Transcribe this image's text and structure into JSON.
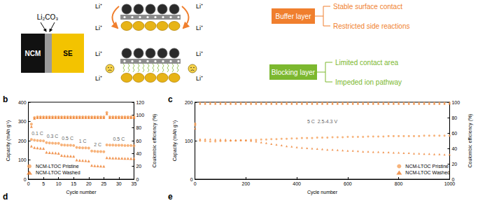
{
  "schematic": {
    "stack": {
      "coating": "Li₂CO₃",
      "cathode": "NCM",
      "electrolyte": "SE"
    },
    "buffer": {
      "ion_labels": [
        "Li⁺",
        "Li⁺",
        "Li⁺",
        "Li⁺"
      ],
      "label": "Buffer layer",
      "color": "#f07f2e",
      "effects": [
        "Stable surface contact",
        "Restricted side reactions"
      ]
    },
    "blocking": {
      "ion_labels": [
        "Li⁺",
        "Li⁺",
        "Li⁺",
        "Li⁺"
      ],
      "label": "Blocking layer",
      "color": "#7cb82f",
      "effects": [
        "Limited contact area",
        "Impeded ion pathway"
      ]
    }
  },
  "cut_panel_labels": [
    "d",
    "e"
  ],
  "chart_data": [
    {
      "type": "scatter",
      "panel_label": "b",
      "x": [
        1,
        2,
        3,
        4,
        5,
        6,
        7,
        8,
        9,
        10,
        11,
        12,
        13,
        14,
        15,
        16,
        17,
        18,
        19,
        20,
        21,
        22,
        23,
        24,
        25,
        26,
        27,
        28,
        29,
        30,
        31,
        32,
        33,
        34,
        35
      ],
      "xlim": [
        0,
        35
      ],
      "xticks": [
        0,
        5,
        10,
        15,
        20,
        25,
        30,
        35
      ],
      "ylim": [
        0,
        400
      ],
      "yticks": [
        0,
        100,
        200,
        300,
        400
      ],
      "y2lim": [
        0,
        120
      ],
      "y2ticks": [
        0,
        20,
        40,
        60,
        80,
        100,
        120
      ],
      "xlabel": "Cycle number",
      "ylabel": "Capacity (mAh g⁻¹)",
      "y2label": "Coulombic efficiency (%)",
      "grid": false,
      "legend": "lower-left",
      "annotations": [
        {
          "text": "0.1 C",
          "x": 3,
          "y": 240
        },
        {
          "text": "0.3 C",
          "x": 8,
          "y": 222
        },
        {
          "text": "0.5 C",
          "x": 13,
          "y": 212
        },
        {
          "text": "1 C",
          "x": 18,
          "y": 198
        },
        {
          "text": "2 C",
          "x": 23,
          "y": 180
        },
        {
          "text": "0.5 C",
          "x": 30,
          "y": 208
        }
      ],
      "series": [
        {
          "name": "NCM-LTOC Pristine",
          "color": "#f5a05a",
          "marker": "circle",
          "values": [
            206,
            203,
            201,
            200,
            199,
            190,
            188,
            187,
            186,
            186,
            178,
            177,
            176,
            176,
            175,
            165,
            164,
            163,
            163,
            162,
            146,
            145,
            144,
            144,
            143,
            178,
            177,
            177,
            176,
            176,
            176,
            175,
            175,
            175,
            174
          ]
        },
        {
          "name": "NCM-LTOC Washed",
          "color": "#ee7d2b",
          "marker": "triangle",
          "values": [
            172,
            165,
            163,
            161,
            160,
            140,
            138,
            137,
            136,
            135,
            124,
            122,
            121,
            120,
            119,
            100,
            98,
            97,
            96,
            95,
            72,
            70,
            69,
            68,
            67,
            112,
            111,
            110,
            110,
            109,
            109,
            108,
            108,
            107,
            107
          ]
        },
        {
          "name": "NCM-LTOC Pristine",
          "color": "#f5a05a",
          "marker": "circle",
          "axis": "y2",
          "values": [
            86,
            96,
            97,
            97,
            97,
            97,
            97,
            97,
            97,
            97,
            97,
            97,
            97,
            97,
            97,
            97,
            97,
            97,
            97,
            97,
            97,
            97,
            97,
            97,
            97,
            104,
            97,
            97,
            97,
            97,
            97,
            97,
            97,
            97,
            97
          ]
        },
        {
          "name": "NCM-LTOC Washed",
          "color": "#ee7d2b",
          "marker": "triangle",
          "axis": "y2",
          "values": [
            82,
            95,
            96,
            96,
            96,
            96,
            96,
            96,
            96,
            96,
            96,
            96,
            96,
            96,
            96,
            96,
            96,
            96,
            96,
            96,
            96,
            96,
            96,
            96,
            96,
            102,
            96,
            96,
            96,
            96,
            96,
            96,
            96,
            96,
            96
          ]
        }
      ]
    },
    {
      "type": "scatter",
      "panel_label": "c",
      "x": [
        1,
        20,
        40,
        60,
        80,
        100,
        120,
        140,
        160,
        180,
        200,
        220,
        240,
        260,
        280,
        300,
        320,
        340,
        360,
        380,
        400,
        420,
        440,
        460,
        480,
        500,
        520,
        540,
        560,
        580,
        600,
        620,
        640,
        660,
        680,
        700,
        720,
        740,
        760,
        780,
        800,
        820,
        840,
        860,
        880,
        900,
        920,
        940,
        960,
        980,
        1000
      ],
      "xlim": [
        0,
        1000
      ],
      "xticks": [
        0,
        200,
        400,
        600,
        800,
        1000
      ],
      "ylim": [
        0,
        200
      ],
      "yticks": [
        0,
        100,
        200
      ],
      "y2lim": [
        0,
        100
      ],
      "y2ticks": [
        0,
        20,
        40,
        60,
        80,
        100
      ],
      "xlabel": "Cycle number",
      "ylabel": "Capacity (mAh g⁻¹)",
      "y2label": "Coulombic efficiency (%)",
      "grid": false,
      "legend": "lower-right",
      "annotations": [
        {
          "text": "5 C  2.5-4.3 V",
          "x": 500,
          "y": 150
        }
      ],
      "series": [
        {
          "name": "NCM-LTOC Pristine",
          "color": "#f5a05a",
          "marker": "circle",
          "values": [
            140,
            100,
            99,
            98,
            98,
            99,
            99,
            100,
            100,
            101,
            101,
            102,
            102,
            103,
            103,
            104,
            104,
            105,
            105,
            106,
            106,
            107,
            107,
            107,
            108,
            108,
            108,
            109,
            109,
            109,
            110,
            110,
            110,
            110,
            111,
            111,
            111,
            111,
            112,
            112,
            112,
            112,
            112,
            112,
            112,
            113,
            113,
            113,
            113,
            113,
            113
          ]
        },
        {
          "name": "NCM-LTOC Washed",
          "color": "#ee7d2b",
          "marker": "triangle",
          "values": [
            145,
            104,
            104,
            104,
            103,
            103,
            103,
            102,
            102,
            102,
            101,
            100,
            98,
            96,
            94,
            92,
            90,
            88,
            86,
            85,
            83,
            82,
            81,
            80,
            79,
            78,
            77,
            77,
            76,
            75,
            74,
            74,
            73,
            72,
            72,
            71,
            71,
            70,
            70,
            69,
            69,
            68,
            68,
            67,
            67,
            66,
            66,
            65,
            65,
            64,
            64
          ]
        },
        {
          "name": "NCM-LTOC Pristine",
          "color": "#f5a05a",
          "marker": "circle",
          "axis": "y2",
          "values": [
            72,
            99,
            99,
            99,
            99,
            99,
            99,
            99,
            99,
            99,
            99,
            99,
            99,
            99,
            99,
            99,
            99,
            99,
            99,
            99,
            99,
            99,
            99,
            99,
            99,
            99,
            99,
            99,
            99,
            99,
            99,
            99,
            99,
            99,
            99,
            99,
            99,
            99,
            99,
            99,
            99,
            99,
            99,
            99,
            99,
            99,
            99,
            99,
            99,
            99,
            99
          ]
        },
        {
          "name": "NCM-LTOC Washed",
          "color": "#ee7d2b",
          "marker": "triangle",
          "axis": "y2",
          "values": [
            66,
            98,
            98,
            98,
            98,
            98,
            98,
            98,
            98,
            98,
            98,
            98,
            98,
            98,
            98,
            98,
            98,
            98,
            98,
            98,
            98,
            98,
            98,
            98,
            98,
            98,
            98,
            98,
            98,
            98,
            98,
            98,
            98,
            98,
            98,
            98,
            98,
            98,
            98,
            98,
            98,
            98,
            98,
            98,
            98,
            98,
            98,
            98,
            98,
            98,
            98
          ]
        }
      ]
    }
  ]
}
